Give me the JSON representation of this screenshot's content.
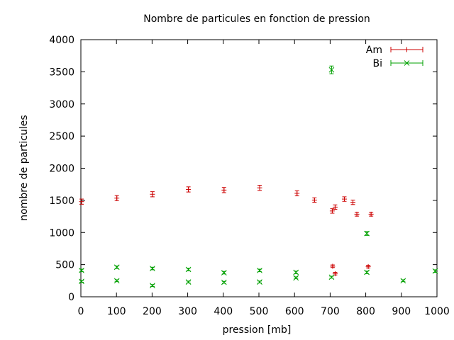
{
  "chart_data": {
    "type": "scatter",
    "title": "Nombre de particules en fonction de pression",
    "xlabel": "pression [mb]",
    "ylabel": "nombre de particules",
    "xlim": [
      0,
      1000
    ],
    "ylim": [
      0,
      4000
    ],
    "xticks": [
      0,
      100,
      200,
      300,
      400,
      500,
      600,
      700,
      800,
      900,
      1000
    ],
    "yticks": [
      0,
      500,
      1000,
      1500,
      2000,
      2500,
      3000,
      3500,
      4000
    ],
    "grid": false,
    "legend_position": "top-right",
    "series": [
      {
        "name": "Am",
        "color": "#cc0000",
        "marker": "plus",
        "points": [
          {
            "x": 2,
            "y": 1480,
            "err": 40
          },
          {
            "x": 101,
            "y": 1535,
            "err": 40
          },
          {
            "x": 201,
            "y": 1595,
            "err": 40
          },
          {
            "x": 302,
            "y": 1670,
            "err": 40
          },
          {
            "x": 402,
            "y": 1660,
            "err": 40
          },
          {
            "x": 502,
            "y": 1695,
            "err": 40
          },
          {
            "x": 607,
            "y": 1610,
            "err": 40
          },
          {
            "x": 656,
            "y": 1505,
            "err": 35
          },
          {
            "x": 706,
            "y": 1335,
            "err": 35
          },
          {
            "x": 707,
            "y": 475,
            "err": 20
          },
          {
            "x": 714,
            "y": 1395,
            "err": 35
          },
          {
            "x": 714,
            "y": 360,
            "err": 20
          },
          {
            "x": 740,
            "y": 1520,
            "err": 35
          },
          {
            "x": 764,
            "y": 1470,
            "err": 35
          },
          {
            "x": 775,
            "y": 1285,
            "err": 30
          },
          {
            "x": 807,
            "y": 470,
            "err": 20
          },
          {
            "x": 815,
            "y": 1285,
            "err": 30
          }
        ]
      },
      {
        "name": "Bi",
        "color": "#00a000",
        "marker": "cross",
        "points": [
          {
            "x": 2,
            "y": 410,
            "err": 20
          },
          {
            "x": 2,
            "y": 240,
            "err": 15
          },
          {
            "x": 101,
            "y": 460,
            "err": 20
          },
          {
            "x": 101,
            "y": 250,
            "err": 15
          },
          {
            "x": 201,
            "y": 440,
            "err": 20
          },
          {
            "x": 201,
            "y": 175,
            "err": 15
          },
          {
            "x": 302,
            "y": 425,
            "err": 20
          },
          {
            "x": 302,
            "y": 230,
            "err": 15
          },
          {
            "x": 402,
            "y": 375,
            "err": 20
          },
          {
            "x": 402,
            "y": 225,
            "err": 15
          },
          {
            "x": 502,
            "y": 410,
            "err": 20
          },
          {
            "x": 502,
            "y": 230,
            "err": 15
          },
          {
            "x": 604,
            "y": 380,
            "err": 20
          },
          {
            "x": 604,
            "y": 295,
            "err": 15
          },
          {
            "x": 704,
            "y": 3530,
            "err": 60
          },
          {
            "x": 704,
            "y": 305,
            "err": 15
          },
          {
            "x": 803,
            "y": 985,
            "err": 30
          },
          {
            "x": 803,
            "y": 380,
            "err": 20
          },
          {
            "x": 905,
            "y": 250,
            "err": 15
          },
          {
            "x": 995,
            "y": 400,
            "err": 20
          }
        ]
      }
    ]
  }
}
